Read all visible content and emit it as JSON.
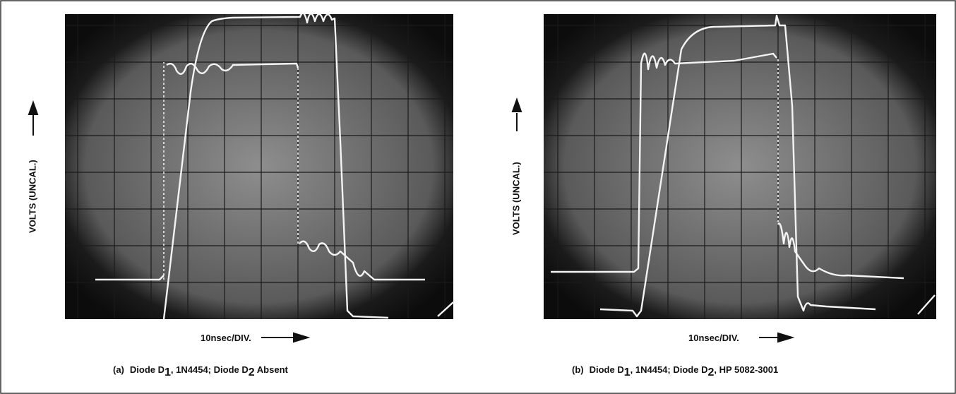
{
  "panels": [
    {
      "y_axis_label": "VOLTS (UNCAL.)",
      "x_axis_label": "10nsec/DIV.",
      "caption": {
        "label": "(a)",
        "text_1": "Diode D",
        "sub_1": "1",
        "text_2": ", 1N4454; Diode D",
        "sub_2": "2",
        "text_3": " Absent"
      }
    },
    {
      "y_axis_label": "VOLTS (UNCAL.)",
      "x_axis_label": "10nsec/DIV.",
      "caption": {
        "label": "(b)",
        "text_1": "Diode D",
        "sub_1": "1",
        "text_2": ", 1N4454; Diode D",
        "sub_2": "2",
        "text_3": ", HP 5082-3001"
      }
    }
  ]
}
